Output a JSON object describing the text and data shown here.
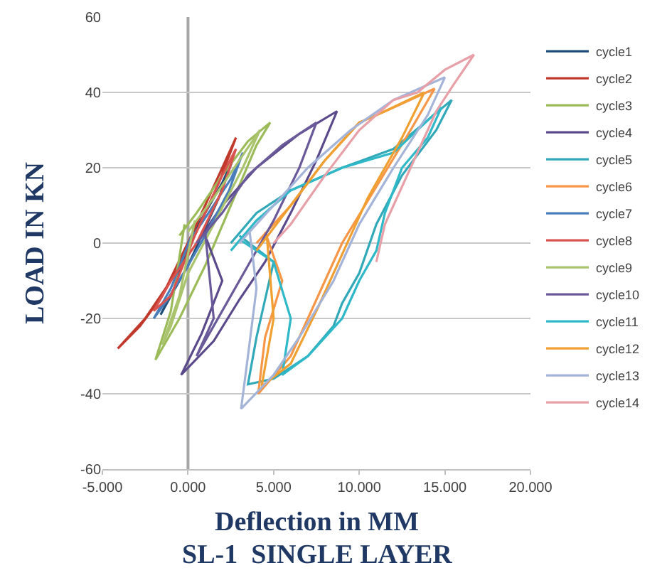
{
  "chart_data": {
    "type": "line",
    "xlabel": "Deflection in MM",
    "ylabel": "LOAD IN KN",
    "annotations": [
      "SL-1  SINGLE LAYER"
    ],
    "xlim": [
      -5,
      20
    ],
    "ylim": [
      -60,
      60
    ],
    "xticks": [
      {
        "value": -5,
        "label": "-5.000"
      },
      {
        "value": 0,
        "label": "0.000"
      },
      {
        "value": 5,
        "label": "5.000"
      },
      {
        "value": 10,
        "label": "10.000"
      },
      {
        "value": 15,
        "label": "15.000"
      },
      {
        "value": 20,
        "label": "20.000"
      }
    ],
    "yticks": [
      -60,
      -40,
      -20,
      0,
      20,
      40,
      60
    ],
    "grid": "y",
    "ref_lines": [
      {
        "axis": "x",
        "value": 0,
        "color": "#a6a6a6"
      }
    ],
    "legend": "right",
    "marker": "none",
    "line_style": "solid",
    "series": [
      {
        "name": "cycle1",
        "color": "#1f4e79",
        "x": [
          0,
          1,
          2,
          2.6,
          1.8,
          0.8,
          0,
          -1,
          -1.6,
          -0.8,
          0.2
        ],
        "values": [
          0,
          8,
          16,
          22,
          12,
          2,
          -6,
          -14,
          -19,
          -12,
          2
        ]
      },
      {
        "name": "cycle2",
        "color": "#c0392b",
        "x": [
          0,
          1,
          2.2,
          2.8,
          1.8,
          0.5,
          -1,
          -2.5,
          -4.1,
          -2.8,
          -1.5,
          0.3
        ],
        "values": [
          0,
          10,
          22,
          28,
          16,
          3,
          -10,
          -20,
          -28,
          -22,
          -14,
          3
        ]
      },
      {
        "name": "cycle3",
        "color": "#9bbb59",
        "x": [
          -0.5,
          0.5,
          2,
          3.5,
          4.8,
          4,
          2.5,
          1,
          -0.5,
          -1.9,
          -1,
          -0.2
        ],
        "values": [
          2,
          8,
          18,
          27,
          32,
          26,
          10,
          -6,
          -20,
          -31,
          -18,
          5
        ]
      },
      {
        "name": "cycle4",
        "color": "#5b4a8b",
        "x": [
          0.5,
          2,
          4,
          6.5,
          8.7,
          7.5,
          6,
          4.5,
          3,
          1.5,
          -0.4,
          0.8,
          2,
          1
        ],
        "values": [
          0,
          10,
          20,
          29,
          35,
          22,
          8,
          -5,
          -15,
          -26,
          -35,
          -24,
          -10,
          2
        ]
      },
      {
        "name": "cycle5",
        "color": "#31a9b8",
        "x": [
          2.5,
          4,
          6,
          9,
          12,
          15.4,
          14.5,
          12.5,
          11,
          10,
          9,
          8.5,
          7,
          5,
          3.5,
          4,
          5,
          3
        ],
        "values": [
          0,
          8,
          14,
          20,
          25,
          38,
          30,
          18,
          5,
          -8,
          -16,
          -22,
          -30,
          -36,
          -37.5,
          -25,
          -5,
          2
        ]
      },
      {
        "name": "cycle6",
        "color": "#f79646",
        "x": [
          4,
          6,
          8,
          10,
          12,
          14.4,
          13,
          11,
          9,
          7.5,
          6,
          4.1,
          4.5,
          5.5,
          4.5
        ],
        "values": [
          0,
          10,
          22,
          32,
          36,
          41,
          30,
          15,
          0,
          -15,
          -30,
          -40,
          -25,
          -10,
          3
        ]
      },
      {
        "name": "cycle7",
        "color": "#4a7ebb",
        "x": [
          0,
          1.2,
          2.5,
          3.2,
          2.4,
          1,
          0,
          -1.2,
          -2,
          -1,
          0.3
        ],
        "values": [
          0,
          8,
          17,
          24,
          14,
          2,
          -6,
          -15,
          -20,
          -12,
          3
        ]
      },
      {
        "name": "cycle8",
        "color": "#d9534f",
        "x": [
          0,
          1,
          2,
          2.8,
          2,
          0.5,
          -1,
          -2,
          -1,
          0.4
        ],
        "values": [
          -2,
          8,
          18,
          25,
          14,
          0,
          -10,
          -18,
          -14,
          2
        ]
      },
      {
        "name": "cycle9",
        "color": "#a9c46c",
        "x": [
          0,
          1.5,
          3,
          4.2,
          3.2,
          1.5,
          0,
          -1,
          -1.5,
          -0.5,
          0.4
        ],
        "values": [
          3,
          12,
          22,
          30,
          20,
          5,
          -8,
          -22,
          -27,
          -14,
          6
        ]
      },
      {
        "name": "cycle10",
        "color": "#6a5a9a",
        "x": [
          0.5,
          2,
          3.5,
          5.5,
          7.5,
          6.5,
          5,
          3.5,
          2,
          0.5,
          1.5,
          1
        ],
        "values": [
          0,
          8,
          18,
          26,
          32,
          20,
          6,
          -6,
          -18,
          -30,
          -20,
          3
        ]
      },
      {
        "name": "cycle11",
        "color": "#2eb8c8",
        "x": [
          2.5,
          4,
          6,
          9,
          12,
          14.8,
          14,
          12.5,
          11.5,
          11,
          10,
          9,
          7,
          5.5,
          6,
          5,
          3
        ],
        "values": [
          -2,
          6,
          14,
          20,
          24,
          36,
          28,
          20,
          8,
          -2,
          -10,
          -20,
          -30,
          -35,
          -20,
          -5,
          1
        ]
      },
      {
        "name": "cycle12",
        "color": "#f0a030",
        "x": [
          4,
          6,
          8,
          10,
          11.5,
          13.8,
          12.5,
          10.5,
          9,
          7.5,
          6,
          4.3,
          5,
          4.6
        ],
        "values": [
          -2,
          10,
          22,
          32,
          35,
          40,
          28,
          12,
          -3,
          -18,
          -32,
          -38,
          -20,
          2
        ]
      },
      {
        "name": "cycle13",
        "color": "#a4b4d8",
        "x": [
          3,
          5,
          7,
          9.5,
          12,
          15,
          14,
          12,
          10,
          8.5,
          6.5,
          5,
          3.1,
          3.5,
          4,
          3.6
        ],
        "values": [
          0,
          10,
          20,
          30,
          38,
          44,
          34,
          20,
          5,
          -10,
          -25,
          -35,
          -44,
          -30,
          -12,
          3
        ]
      },
      {
        "name": "cycle14",
        "color": "#e8a0a8",
        "x": [
          11,
          11.5,
          12.5,
          13.5,
          14.5,
          15.5,
          16.7,
          15,
          13.4,
          12,
          10,
          8,
          6,
          5
        ],
        "values": [
          -5,
          5,
          15,
          25,
          35,
          42,
          50,
          46,
          40,
          38,
          30,
          18,
          5,
          0
        ]
      }
    ]
  }
}
